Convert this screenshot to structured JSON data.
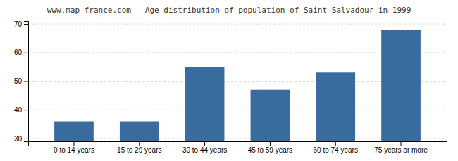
{
  "chart_data": {
    "type": "bar",
    "title": "www.map-france.com - Age distribution of population of Saint-Salvadour in 1999",
    "categories": [
      "0 to 14 years",
      "15 to 29 years",
      "30 to 44 years",
      "45 to 59 years",
      "60 to 74 years",
      "75 years or more"
    ],
    "values": [
      36,
      36,
      55,
      47,
      53,
      68
    ],
    "color": "#3A6B9F",
    "ylim": [
      29,
      71
    ],
    "yticks": [
      30,
      40,
      50,
      60,
      70
    ],
    "grid": true
  }
}
